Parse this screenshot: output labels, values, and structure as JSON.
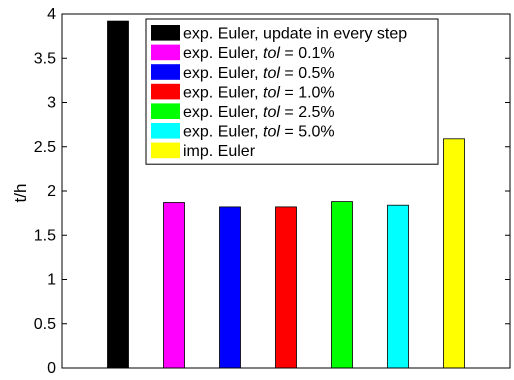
{
  "chart_data": {
    "type": "bar",
    "title": "",
    "xlabel": "",
    "ylabel": "t/h",
    "ylim": [
      0,
      4
    ],
    "yticks": [
      "0",
      "0.5",
      "1",
      "1.5",
      "2",
      "2.5",
      "3",
      "3.5",
      "4"
    ],
    "grid": false,
    "legend_position": "top-right",
    "series": [
      {
        "label_parts": [
          "exp. Euler, update in every step"
        ],
        "value": 3.92,
        "color": "#000000"
      },
      {
        "label_parts": [
          "exp. Euler, ",
          "tol",
          " = 0.1%"
        ],
        "value": 1.87,
        "color": "#ff00ff"
      },
      {
        "label_parts": [
          "exp. Euler, ",
          "tol",
          " = 0.5%"
        ],
        "value": 1.82,
        "color": "#0000ff"
      },
      {
        "label_parts": [
          "exp. Euler, ",
          "tol",
          " = 1.0%"
        ],
        "value": 1.82,
        "color": "#ff0000"
      },
      {
        "label_parts": [
          "exp. Euler, ",
          "tol",
          " = 2.5%"
        ],
        "value": 1.88,
        "color": "#00ff00"
      },
      {
        "label_parts": [
          "exp. Euler, ",
          "tol",
          " = 5.0%"
        ],
        "value": 1.84,
        "color": "#00ffff"
      },
      {
        "label_parts": [
          "imp. Euler"
        ],
        "value": 2.59,
        "color": "#ffff00"
      }
    ]
  }
}
